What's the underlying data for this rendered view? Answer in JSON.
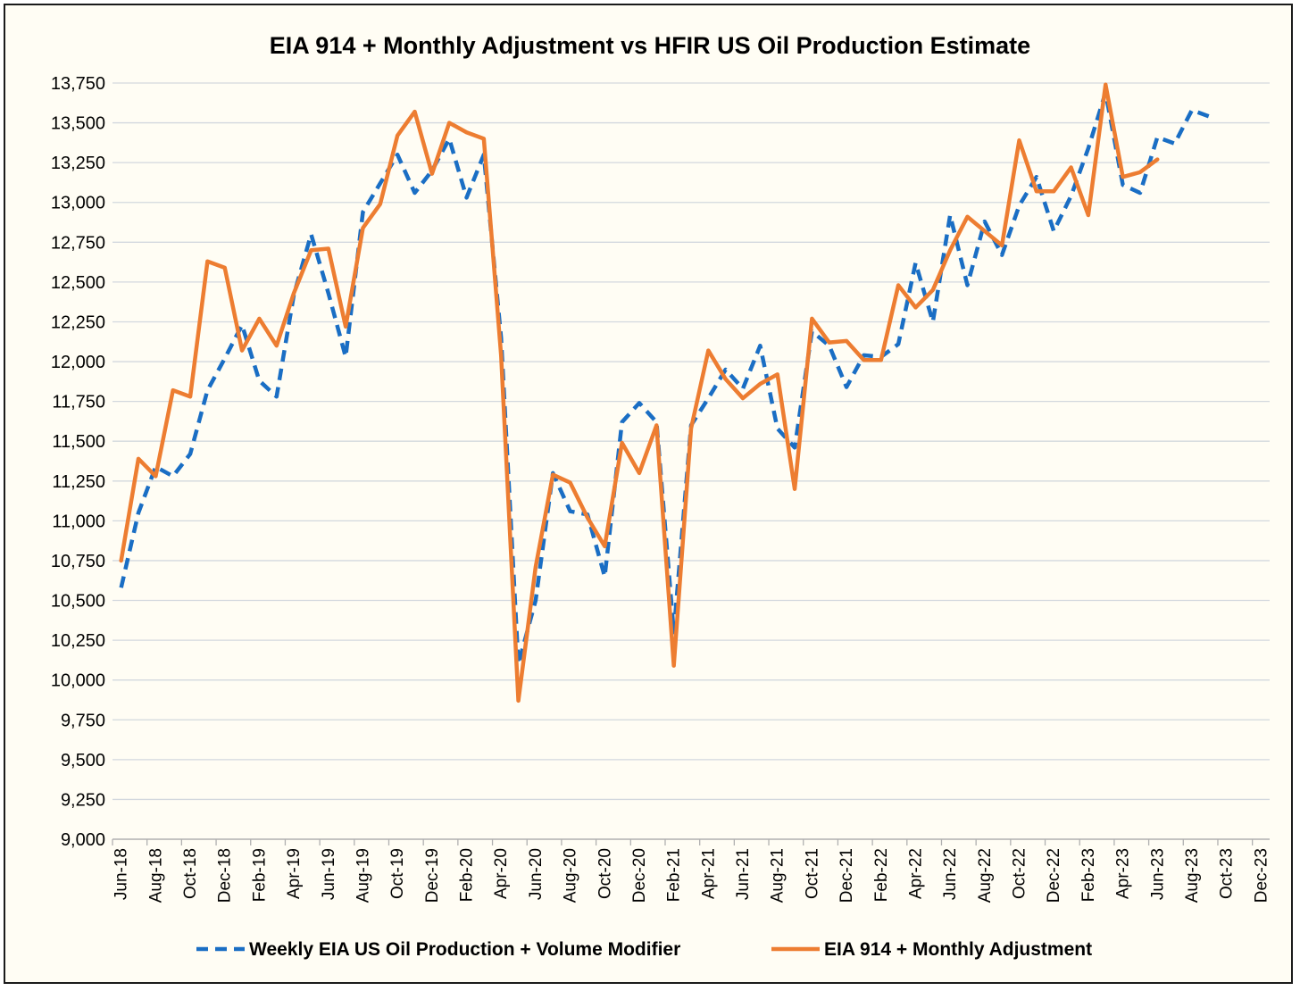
{
  "chart_data": {
    "type": "line",
    "title": "EIA 914 + Monthly Adjustment vs HFIR US Oil Production Estimate",
    "xlabel": "",
    "ylabel": "",
    "ylim": [
      9000,
      13750
    ],
    "y_ticks": [
      9000,
      9250,
      9500,
      9750,
      10000,
      10250,
      10500,
      10750,
      11000,
      11250,
      11500,
      11750,
      12000,
      12250,
      12500,
      12750,
      13000,
      13250,
      13500,
      13750
    ],
    "y_tick_labels": [
      "9,000",
      "9,250",
      "9,500",
      "9,750",
      "10,000",
      "10,250",
      "10,500",
      "10,750",
      "11,000",
      "11,250",
      "11,500",
      "11,750",
      "12,000",
      "12,250",
      "12,500",
      "12,750",
      "13,000",
      "13,250",
      "13,500",
      "13,750"
    ],
    "x": [
      "Jun-18",
      "Jul-18",
      "Aug-18",
      "Sep-18",
      "Oct-18",
      "Nov-18",
      "Dec-18",
      "Jan-19",
      "Feb-19",
      "Mar-19",
      "Apr-19",
      "May-19",
      "Jun-19",
      "Jul-19",
      "Aug-19",
      "Sep-19",
      "Oct-19",
      "Nov-19",
      "Dec-19",
      "Jan-20",
      "Feb-20",
      "Mar-20",
      "Apr-20",
      "May-20",
      "Jun-20",
      "Jul-20",
      "Aug-20",
      "Sep-20",
      "Oct-20",
      "Nov-20",
      "Dec-20",
      "Jan-21",
      "Feb-21",
      "Mar-21",
      "Apr-21",
      "May-21",
      "Jun-21",
      "Jul-21",
      "Aug-21",
      "Sep-21",
      "Oct-21",
      "Nov-21",
      "Dec-21",
      "Jan-22",
      "Feb-22",
      "Mar-22",
      "Apr-22",
      "May-22",
      "Jun-22",
      "Jul-22",
      "Aug-22",
      "Sep-22",
      "Oct-22",
      "Nov-22",
      "Dec-22",
      "Jan-23",
      "Feb-23",
      "Mar-23",
      "Apr-23",
      "May-23",
      "Jun-23",
      "Jul-23",
      "Aug-23",
      "Sep-23",
      "Oct-23",
      "Nov-23",
      "Dec-23"
    ],
    "x_tick_labels": [
      "Jun-18",
      "Aug-18",
      "Oct-18",
      "Dec-18",
      "Feb-19",
      "Apr-19",
      "Jun-19",
      "Aug-19",
      "Oct-19",
      "Dec-19",
      "Feb-20",
      "Apr-20",
      "Jun-20",
      "Aug-20",
      "Oct-20",
      "Dec-20",
      "Feb-21",
      "Apr-21",
      "Jun-21",
      "Aug-21",
      "Oct-21",
      "Dec-21",
      "Feb-22",
      "Apr-22",
      "Jun-22",
      "Aug-22",
      "Oct-22",
      "Dec-22",
      "Feb-23",
      "Apr-23",
      "Jun-23",
      "Aug-23",
      "Oct-23",
      "Dec-23"
    ],
    "grid": "horizontal",
    "legend_position": "bottom",
    "series": [
      {
        "name": "Weekly EIA US Oil Production + Volume Modifier",
        "color": "#1a6ec4",
        "style": "dashed",
        "values": [
          10580,
          11050,
          11340,
          11280,
          11420,
          11820,
          12020,
          12230,
          11880,
          11780,
          12420,
          12800,
          12430,
          12030,
          12940,
          13120,
          13300,
          13060,
          13200,
          13400,
          13030,
          13300,
          12150,
          10100,
          10500,
          11300,
          11060,
          11040,
          10650,
          11620,
          11740,
          11620,
          10300,
          11600,
          11770,
          11950,
          11830,
          12100,
          11580,
          11460,
          12190,
          12100,
          11840,
          12040,
          12030,
          12110,
          12620,
          12250,
          12920,
          12480,
          12880,
          12670,
          12980,
          13160,
          12820,
          13040,
          13340,
          13690,
          13110,
          13060,
          13410,
          13370,
          13580,
          13540,
          null,
          null,
          null
        ]
      },
      {
        "name": "EIA 914 + Monthly Adjustment",
        "color": "#ed7d31",
        "style": "solid",
        "values": [
          10750,
          11390,
          11280,
          11820,
          11780,
          12630,
          12590,
          12070,
          12270,
          12100,
          12430,
          12700,
          12710,
          12220,
          12840,
          12990,
          13420,
          13570,
          13180,
          13500,
          13440,
          13400,
          12040,
          9870,
          10710,
          11290,
          11240,
          11020,
          10840,
          11490,
          11300,
          11600,
          10090,
          11580,
          12070,
          11890,
          11770,
          11860,
          11920,
          11200,
          12270,
          12120,
          12130,
          12010,
          12010,
          12480,
          12340,
          12450,
          12700,
          12910,
          12820,
          12730,
          13390,
          13070,
          13070,
          13220,
          12920,
          13740,
          13160,
          13190,
          13270,
          null,
          null,
          null,
          null,
          null,
          null
        ]
      }
    ]
  }
}
